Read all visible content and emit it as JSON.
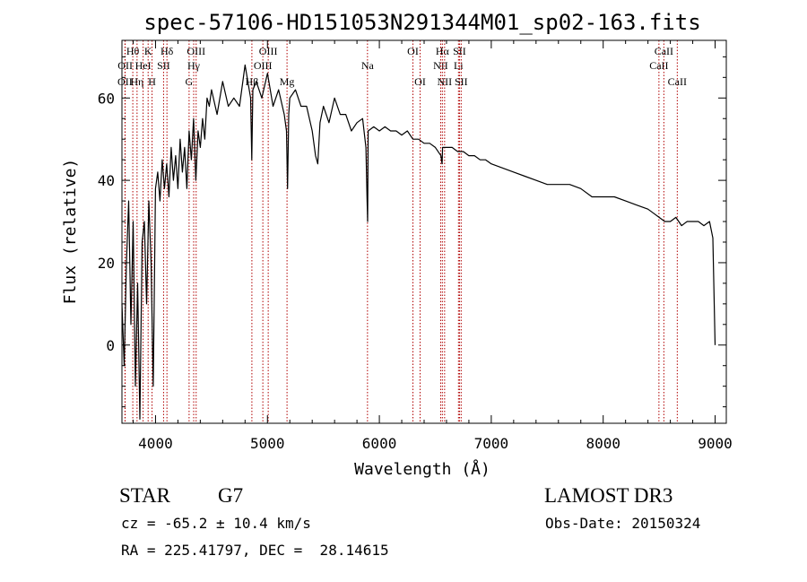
{
  "chart_data": {
    "type": "line",
    "title": "spec-57106-HD151053N291344M01_sp02-163.fits",
    "xlabel": "Wavelength (Å)",
    "ylabel": "Flux (relative)",
    "xlim": [
      3700,
      9100
    ],
    "ylim": [
      -19,
      74
    ],
    "xticks": [
      4000,
      5000,
      6000,
      7000,
      8000,
      9000
    ],
    "yticks": [
      0,
      20,
      40,
      60
    ],
    "series": [
      {
        "name": "flux",
        "x": [
          3700,
          3720,
          3740,
          3760,
          3780,
          3800,
          3820,
          3840,
          3860,
          3880,
          3900,
          3920,
          3940,
          3960,
          3980,
          4000,
          4020,
          4040,
          4060,
          4080,
          4100,
          4120,
          4140,
          4160,
          4180,
          4200,
          4220,
          4240,
          4260,
          4280,
          4300,
          4320,
          4340,
          4360,
          4380,
          4400,
          4420,
          4440,
          4460,
          4480,
          4500,
          4550,
          4600,
          4650,
          4700,
          4750,
          4800,
          4850,
          4860,
          4870,
          4900,
          4950,
          5000,
          5050,
          5100,
          5150,
          5170,
          5180,
          5190,
          5200,
          5250,
          5300,
          5350,
          5400,
          5430,
          5450,
          5470,
          5500,
          5550,
          5600,
          5650,
          5700,
          5750,
          5800,
          5850,
          5880,
          5890,
          5895,
          5900,
          5950,
          6000,
          6050,
          6100,
          6150,
          6200,
          6250,
          6300,
          6350,
          6400,
          6450,
          6500,
          6550,
          6560,
          6565,
          6570,
          6600,
          6650,
          6700,
          6750,
          6800,
          6850,
          6900,
          6950,
          7000,
          7100,
          7200,
          7300,
          7400,
          7500,
          7600,
          7700,
          7800,
          7900,
          8000,
          8100,
          8200,
          8300,
          8400,
          8450,
          8500,
          8550,
          8600,
          8650,
          8700,
          8750,
          8800,
          8850,
          8900,
          8950,
          8980,
          9000
        ],
        "values": [
          10,
          -5,
          20,
          35,
          5,
          30,
          -10,
          15,
          -18,
          25,
          30,
          10,
          35,
          20,
          -10,
          38,
          42,
          35,
          45,
          38,
          44,
          36,
          48,
          40,
          46,
          38,
          50,
          42,
          48,
          38,
          52,
          45,
          55,
          40,
          52,
          48,
          55,
          50,
          60,
          58,
          62,
          56,
          64,
          58,
          60,
          58,
          68,
          60,
          45,
          62,
          64,
          60,
          66,
          58,
          62,
          56,
          52,
          38,
          56,
          60,
          62,
          58,
          58,
          52,
          46,
          44,
          54,
          58,
          54,
          60,
          56,
          56,
          52,
          54,
          55,
          48,
          36,
          30,
          52,
          53,
          52,
          53,
          52,
          52,
          51,
          52,
          50,
          50,
          49,
          49,
          48,
          46,
          44,
          48,
          48,
          48,
          48,
          47,
          47,
          46,
          46,
          45,
          45,
          44,
          43,
          42,
          41,
          40,
          39,
          39,
          39,
          38,
          36,
          36,
          36,
          35,
          34,
          33,
          32,
          31,
          30,
          30,
          31,
          29,
          30,
          30,
          30,
          29,
          30,
          26,
          0
        ]
      }
    ],
    "line_labels": [
      {
        "name": "OII",
        "x": 3727,
        "row": 3
      },
      {
        "name": "OII",
        "x": 3729,
        "row": 2
      },
      {
        "name": "Hθ",
        "x": 3797,
        "row": 1
      },
      {
        "name": "Hη",
        "x": 3835,
        "row": 3
      },
      {
        "name": "HeI",
        "x": 3889,
        "row": 2
      },
      {
        "name": "K",
        "x": 3934,
        "row": 1
      },
      {
        "name": "H",
        "x": 3969,
        "row": 3
      },
      {
        "name": "SII",
        "x": 4072,
        "row": 2
      },
      {
        "name": "Hδ",
        "x": 4102,
        "row": 1
      },
      {
        "name": "G",
        "x": 4300,
        "row": 3
      },
      {
        "name": "Hγ",
        "x": 4341,
        "row": 2
      },
      {
        "name": "OIII",
        "x": 4363,
        "row": 1
      },
      {
        "name": "Hβ",
        "x": 4861,
        "row": 3
      },
      {
        "name": "OIII",
        "x": 4959,
        "row": 2
      },
      {
        "name": "OIII",
        "x": 5007,
        "row": 1
      },
      {
        "name": "Mg",
        "x": 5175,
        "row": 3
      },
      {
        "name": "Na",
        "x": 5894,
        "row": 2
      },
      {
        "name": "OI",
        "x": 6300,
        "row": 1
      },
      {
        "name": "OI",
        "x": 6364,
        "row": 3
      },
      {
        "name": "NII",
        "x": 6548,
        "row": 2
      },
      {
        "name": "Hα",
        "x": 6563,
        "row": 1
      },
      {
        "name": "NII",
        "x": 6583,
        "row": 3
      },
      {
        "name": "Li",
        "x": 6707,
        "row": 2
      },
      {
        "name": "SII",
        "x": 6716,
        "row": 1
      },
      {
        "name": "SII",
        "x": 6731,
        "row": 3
      },
      {
        "name": "CaII",
        "x": 8498,
        "row": 2
      },
      {
        "name": "CaII",
        "x": 8542,
        "row": 1
      },
      {
        "name": "CaII",
        "x": 8662,
        "row": 3
      }
    ]
  },
  "info": {
    "class": "STAR",
    "subclass": "G7",
    "survey": "LAMOST DR3",
    "cz": "cz = -65.2 ± 10.4 km/s",
    "obs_date": "Obs-Date: 20150324",
    "coords": "RA = 225.41797, DEC =  28.14615"
  },
  "colors": {
    "line": "#000000",
    "marker": "#b00000"
  }
}
